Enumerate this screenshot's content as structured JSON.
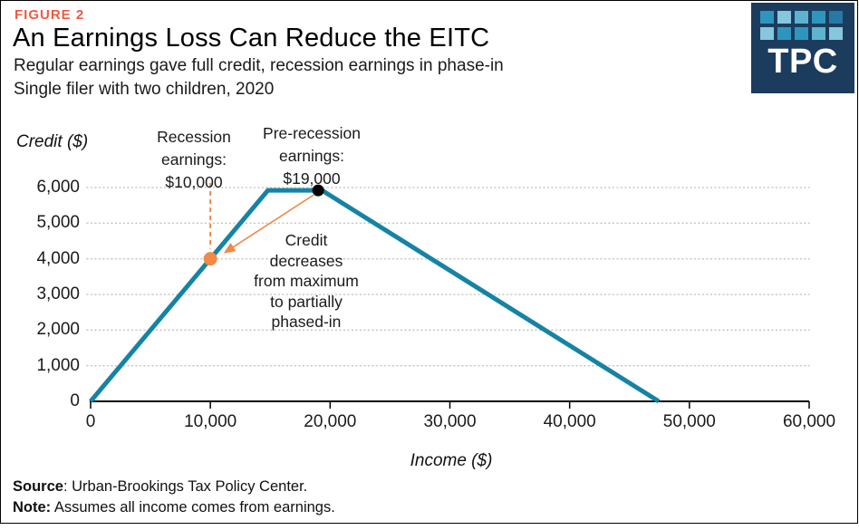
{
  "figure_label": "FIGURE 2",
  "title": "An Earnings Loss Can Reduce the EITC",
  "subtitle": "Regular earnings gave full credit, recession earnings in phase-in",
  "subtitle2": "Single filer with two children, 2020",
  "logo": {
    "text": "TPC",
    "bg_color": "#1C3C5E",
    "square_colors_row1": [
      "#2E96BC",
      "#86C7DC",
      "#5FB3CE",
      "#2E96BC",
      "#2778A3"
    ],
    "square_colors_row2": [
      "#86C7DC",
      "#2E96BC",
      "#2E96BC",
      "#5FB3CE",
      "#86C7DC"
    ]
  },
  "chart_data": {
    "type": "line",
    "title": "An Earnings Loss Can Reduce the EITC",
    "subtitle": "Regular earnings gave full credit, recession earnings in phase-in; Single filer with two children, 2020",
    "xlabel": "Income ($)",
    "ylabel": "Credit ($)",
    "xlim": [
      0,
      60000
    ],
    "ylim": [
      0,
      6000
    ],
    "xticks": [
      "0",
      "10,000",
      "20,000",
      "30,000",
      "40,000",
      "50,000",
      "60,000"
    ],
    "xtick_values": [
      0,
      10000,
      20000,
      30000,
      40000,
      50000,
      60000
    ],
    "yticks": [
      "0",
      "1,000",
      "2,000",
      "3,000",
      "4,000",
      "5,000",
      "6,000"
    ],
    "ytick_values": [
      0,
      1000,
      2000,
      3000,
      4000,
      5000,
      6000
    ],
    "grid": "horizontal-dotted",
    "legend": "none",
    "line_color": "#1583A5",
    "accent_orange": "#F18A44",
    "series": [
      {
        "name": "EITC credit schedule",
        "points": [
          [
            0,
            0
          ],
          [
            14800,
            5920
          ],
          [
            19330,
            5920
          ],
          [
            47440,
            0
          ]
        ]
      }
    ],
    "markers": [
      {
        "name": "recession-earnings",
        "x": 10000,
        "y": 4000,
        "color": "#F18A44",
        "r": 7.5,
        "label": "Recession earnings: $10,000"
      },
      {
        "name": "pre-recession-earnings",
        "x": 19000,
        "y": 5920,
        "color": "#000000",
        "r": 6.5,
        "label": "Pre-recession earnings: $19,000"
      }
    ],
    "annotation": "Credit decreases from maximum to partially phased-in"
  },
  "annotations": {
    "recession": {
      "line1": "Recession",
      "line2": "earnings:",
      "line3": "$10,000"
    },
    "pre_recession": {
      "line1": "Pre-recession",
      "line2": "earnings:",
      "line3": "$19,000"
    },
    "credit_note": {
      "line1": "Credit",
      "line2": "decreases",
      "line3": "from maximum",
      "line4": "to partially",
      "line5": "phased-in"
    }
  },
  "footer": {
    "source_label": "Source",
    "source_text": ": Urban-Brookings Tax Policy Center.",
    "note_label": "Note:",
    "note_text": " Assumes all income comes from earnings."
  }
}
